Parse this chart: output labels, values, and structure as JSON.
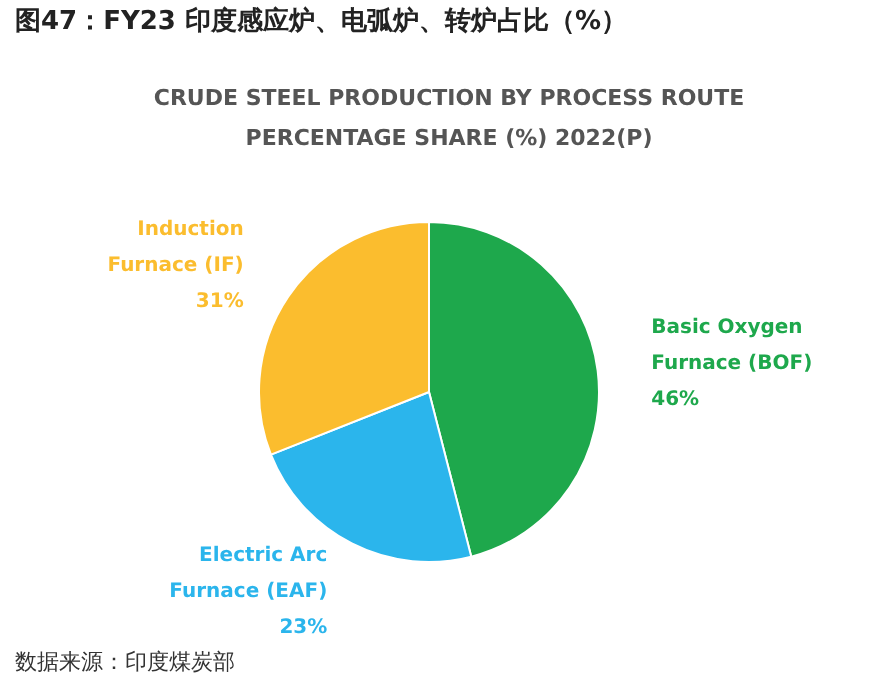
{
  "chart_data": {
    "type": "pie",
    "title": "图47：FY23 印度感应炉、电弧炉、转炉占比（%）",
    "subtitle": "CRUDE STEEL PRODUCTION BY PROCESS ROUTE PERCENTAGE SHARE (%) 2022(P)",
    "categories": [
      "Basic Oxygen Furnace (BOF)",
      "Electric Arc Furnace (EAF)",
      "Induction Furnace (IF)"
    ],
    "values": [
      46,
      23,
      31
    ],
    "colors": [
      "#1ea84c",
      "#2bb5ec",
      "#fbbd2e"
    ],
    "value_labels": [
      "46%",
      "23%",
      "31%"
    ],
    "annotations": [
      "数据来源：印度煤炭部"
    ]
  }
}
